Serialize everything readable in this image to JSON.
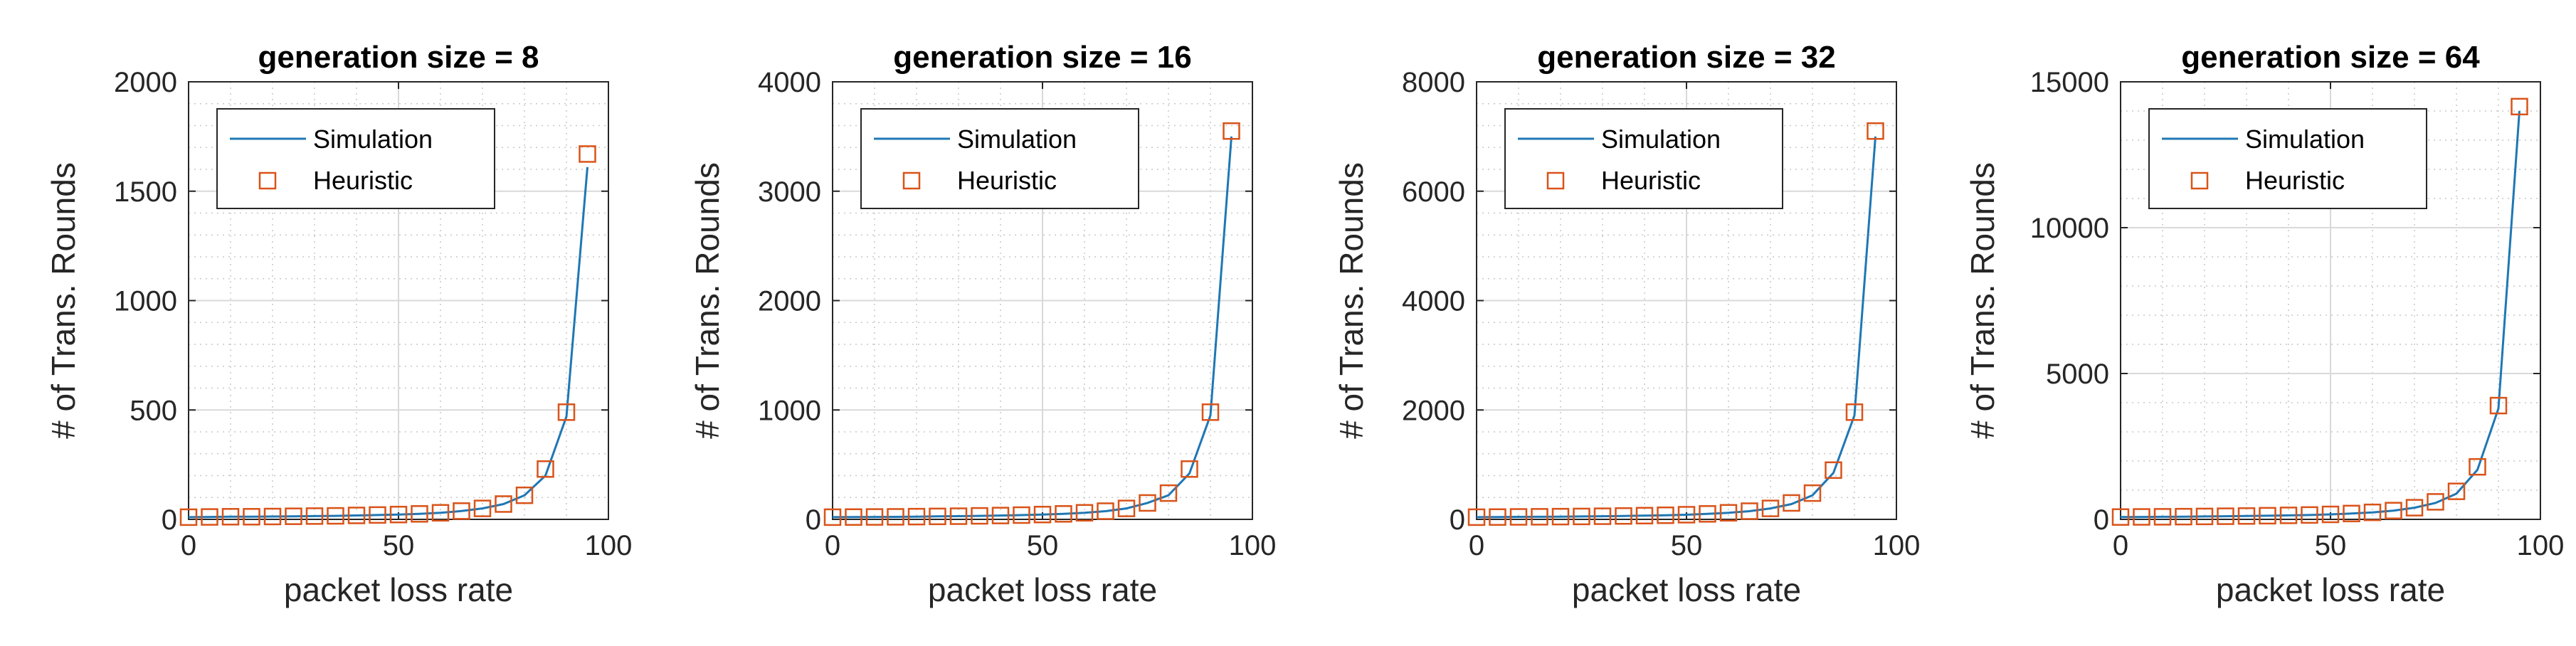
{
  "colors": {
    "simulation_line": "#1f77b4",
    "heuristic_marker": "#d95319",
    "grid": "#c8c8c8",
    "axis": "#262626"
  },
  "chart_data": [
    {
      "type": "line",
      "title": "generation size = 8",
      "xlabel": "packet loss rate",
      "ylabel": "# of Trans. Rounds",
      "xlim": [
        0,
        100
      ],
      "ylim": [
        0,
        2000
      ],
      "xticks": [
        0,
        50,
        100
      ],
      "xtick_labels": [
        "0",
        "50",
        "100"
      ],
      "yticks": [
        0,
        500,
        1000,
        1500,
        2000
      ],
      "ytick_labels": [
        "0",
        "500",
        "1000",
        "1500",
        "2000"
      ],
      "grid": true,
      "legend_position": "top-left",
      "x": [
        0,
        5,
        10,
        15,
        20,
        25,
        30,
        35,
        40,
        45,
        50,
        55,
        60,
        65,
        70,
        75,
        80,
        85,
        90,
        95
      ],
      "series": [
        {
          "name": "Simulation",
          "style": "line",
          "values": [
            10,
            11,
            12,
            12,
            13,
            14,
            15,
            16,
            18,
            20,
            22,
            25,
            30,
            38,
            50,
            70,
            110,
            200,
            470,
            1610
          ]
        },
        {
          "name": "Heuristic",
          "style": "square-marker",
          "values": [
            10,
            11,
            12,
            12,
            13,
            14,
            15,
            16,
            18,
            20,
            22,
            25,
            30,
            38,
            50,
            70,
            110,
            230,
            490,
            1670
          ]
        }
      ]
    },
    {
      "type": "line",
      "title": "generation size = 16",
      "xlabel": "packet loss rate",
      "ylabel": "# of Trans. Rounds",
      "xlim": [
        0,
        100
      ],
      "ylim": [
        0,
        4000
      ],
      "xticks": [
        0,
        50,
        100
      ],
      "xtick_labels": [
        "0",
        "50",
        "100"
      ],
      "yticks": [
        0,
        1000,
        2000,
        3000,
        4000
      ],
      "ytick_labels": [
        "0",
        "1000",
        "2000",
        "3000",
        "4000"
      ],
      "grid": true,
      "legend_position": "top-left",
      "x": [
        0,
        5,
        10,
        15,
        20,
        25,
        30,
        35,
        40,
        45,
        50,
        55,
        60,
        65,
        70,
        75,
        80,
        85,
        90,
        95
      ],
      "series": [
        {
          "name": "Simulation",
          "style": "line",
          "values": [
            20,
            21,
            22,
            23,
            25,
            27,
            29,
            32,
            35,
            39,
            44,
            50,
            60,
            75,
            100,
            150,
            220,
            420,
            950,
            3500
          ]
        },
        {
          "name": "Heuristic",
          "style": "square-marker",
          "values": [
            20,
            21,
            22,
            23,
            25,
            27,
            29,
            32,
            35,
            39,
            44,
            50,
            60,
            75,
            100,
            150,
            240,
            460,
            980,
            3550
          ]
        }
      ]
    },
    {
      "type": "line",
      "title": "generation size = 32",
      "xlabel": "packet loss rate",
      "ylabel": "# of Trans. Rounds",
      "xlim": [
        0,
        100
      ],
      "ylim": [
        0,
        8000
      ],
      "xticks": [
        0,
        50,
        100
      ],
      "xtick_labels": [
        "0",
        "50",
        "100"
      ],
      "yticks": [
        0,
        2000,
        4000,
        6000,
        8000
      ],
      "ytick_labels": [
        "0",
        "2000",
        "4000",
        "6000",
        "8000"
      ],
      "grid": true,
      "legend_position": "top-left",
      "x": [
        0,
        5,
        10,
        15,
        20,
        25,
        30,
        35,
        40,
        45,
        50,
        55,
        60,
        65,
        70,
        75,
        80,
        85,
        90,
        95
      ],
      "series": [
        {
          "name": "Simulation",
          "style": "line",
          "values": [
            40,
            42,
            45,
            47,
            50,
            53,
            57,
            62,
            68,
            75,
            85,
            100,
            120,
            150,
            200,
            280,
            440,
            850,
            1900,
            7000
          ]
        },
        {
          "name": "Heuristic",
          "style": "square-marker",
          "values": [
            40,
            42,
            45,
            47,
            50,
            53,
            57,
            62,
            68,
            75,
            85,
            100,
            120,
            150,
            200,
            300,
            480,
            900,
            1960,
            7100
          ]
        }
      ]
    },
    {
      "type": "line",
      "title": "generation size = 64",
      "xlabel": "packet loss rate",
      "ylabel": "# of Trans. Rounds",
      "xlim": [
        0,
        100
      ],
      "ylim": [
        0,
        15000
      ],
      "xticks": [
        0,
        50,
        100
      ],
      "xtick_labels": [
        "0",
        "50",
        "100"
      ],
      "yticks": [
        0,
        5000,
        10000,
        15000
      ],
      "ytick_labels": [
        "0",
        "5000",
        "10000",
        "15000"
      ],
      "grid": true,
      "legend_position": "top-left",
      "x": [
        0,
        5,
        10,
        15,
        20,
        25,
        30,
        35,
        40,
        45,
        50,
        55,
        60,
        65,
        70,
        75,
        80,
        85,
        90,
        95
      ],
      "series": [
        {
          "name": "Simulation",
          "style": "line",
          "values": [
            80,
            84,
            88,
            93,
            100,
            107,
            115,
            125,
            137,
            150,
            170,
            200,
            240,
            300,
            400,
            560,
            880,
            1700,
            3800,
            14000
          ]
        },
        {
          "name": "Heuristic",
          "style": "square-marker",
          "values": [
            80,
            84,
            88,
            93,
            100,
            107,
            115,
            125,
            137,
            150,
            170,
            200,
            240,
            300,
            400,
            600,
            960,
            1800,
            3900,
            14150
          ]
        }
      ]
    }
  ]
}
